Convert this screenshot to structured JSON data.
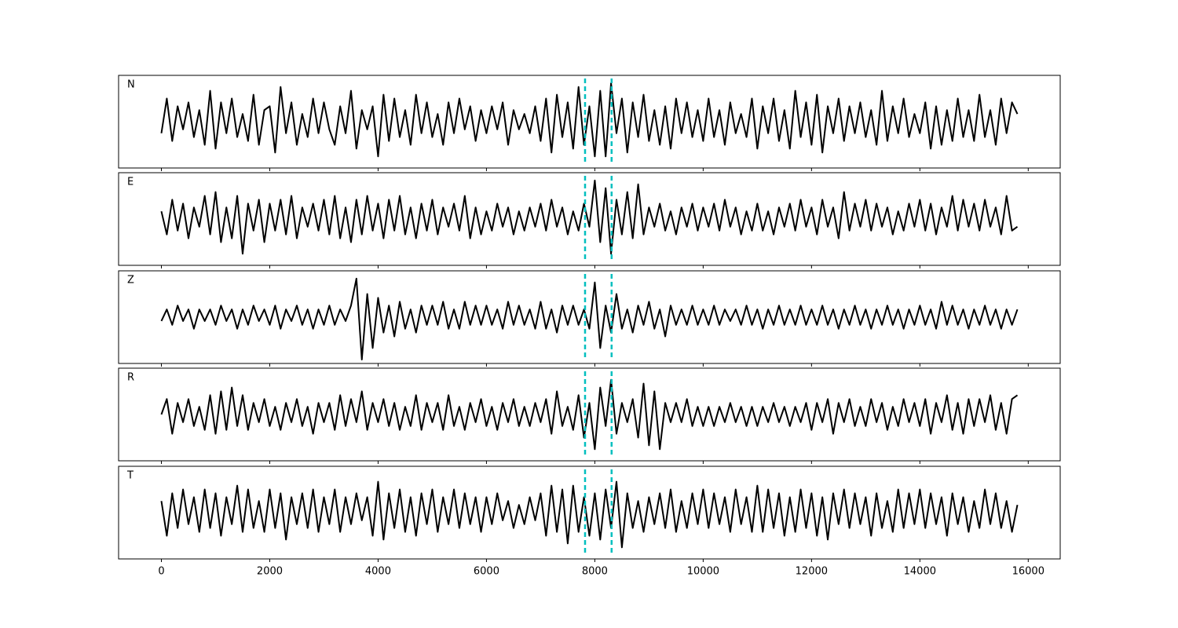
{
  "chart_data": {
    "type": "line",
    "x": [
      0,
      100,
      200,
      300,
      400,
      500,
      600,
      700,
      800,
      900,
      1000,
      1100,
      1200,
      1300,
      1400,
      1500,
      1600,
      1700,
      1800,
      1900,
      2000,
      2100,
      2200,
      2300,
      2400,
      2500,
      2600,
      2700,
      2800,
      2900,
      3000,
      3100,
      3200,
      3300,
      3400,
      3500,
      3600,
      3700,
      3800,
      3900,
      4000,
      4100,
      4200,
      4300,
      4400,
      4500,
      4600,
      4700,
      4800,
      4900,
      5000,
      5100,
      5200,
      5300,
      5400,
      5500,
      5600,
      5700,
      5800,
      5900,
      6000,
      6100,
      6200,
      6300,
      6400,
      6500,
      6600,
      6700,
      6800,
      6900,
      7000,
      7100,
      7200,
      7300,
      7400,
      7500,
      7600,
      7700,
      7800,
      7900,
      8000,
      8100,
      8200,
      8300,
      8400,
      8500,
      8600,
      8700,
      8800,
      8900,
      9000,
      9100,
      9200,
      9300,
      9400,
      9500,
      9600,
      9700,
      9800,
      9900,
      10000,
      10100,
      10200,
      10300,
      10400,
      10500,
      10600,
      10700,
      10800,
      10900,
      11000,
      11100,
      11200,
      11300,
      11400,
      11500,
      11600,
      11700,
      11800,
      11900,
      12000,
      12100,
      12200,
      12300,
      12400,
      12500,
      12600,
      12700,
      12800,
      12900,
      13000,
      13100,
      13200,
      13300,
      13400,
      13500,
      13600,
      13700,
      13800,
      13900,
      14000,
      14100,
      14200,
      14300,
      14400,
      14500,
      14600,
      14700,
      14800,
      14900,
      15000,
      15100,
      15200,
      15300,
      15400,
      15500,
      15600,
      15700,
      15800
    ],
    "xlim": [
      -790,
      16590
    ],
    "xticks": [
      0,
      2000,
      4000,
      6000,
      8000,
      10000,
      12000,
      14000,
      16000
    ],
    "ylim": [
      -12,
      12
    ],
    "vlines": [
      7820,
      8310
    ],
    "vline_color": "#00bfbf",
    "series": [
      {
        "name": "N",
        "color": "#000000",
        "values": [
          -3,
          6,
          -5,
          4,
          -2,
          5,
          -4,
          3,
          -6,
          8,
          -7,
          5,
          -3,
          6,
          -4,
          2,
          -5,
          7,
          -6,
          3,
          4,
          -8,
          9,
          -3,
          5,
          -6,
          2,
          -4,
          6,
          -3,
          5,
          -2,
          -6,
          4,
          -3,
          8,
          -7,
          3,
          -2,
          4,
          -9,
          7,
          -5,
          6,
          -4,
          3,
          -6,
          7,
          -3,
          5,
          -4,
          2,
          -6,
          5,
          -3,
          6,
          -2,
          4,
          -5,
          3,
          -3,
          4,
          -2,
          5,
          -6,
          3,
          -2,
          2,
          -3,
          4,
          -5,
          6,
          -8,
          7,
          -4,
          5,
          -7,
          9,
          -6,
          4,
          -9,
          8,
          -9,
          10,
          -3,
          6,
          -8,
          5,
          -4,
          7,
          -5,
          3,
          -6,
          4,
          -7,
          6,
          -3,
          5,
          -4,
          3,
          -5,
          6,
          -4,
          3,
          -6,
          5,
          -3,
          2,
          -4,
          6,
          -7,
          4,
          -3,
          6,
          -5,
          3,
          -7,
          8,
          -4,
          5,
          -6,
          7,
          -8,
          4,
          -3,
          6,
          -5,
          4,
          -3,
          5,
          -4,
          3,
          -6,
          8,
          -5,
          4,
          -3,
          6,
          -4,
          2,
          -3,
          5,
          -7,
          4,
          -6,
          3,
          -5,
          6,
          -4,
          3,
          -5,
          7,
          -4,
          3,
          -6,
          6,
          -3,
          5,
          2
        ]
      },
      {
        "name": "E",
        "color": "#000000",
        "values": [
          2,
          -4,
          5,
          -3,
          4,
          -5,
          3,
          -2,
          6,
          -4,
          7,
          -6,
          3,
          -5,
          6,
          -9,
          4,
          -3,
          5,
          -6,
          4,
          -3,
          5,
          -4,
          6,
          -5,
          3,
          -2,
          4,
          -3,
          5,
          -4,
          6,
          -5,
          3,
          -6,
          5,
          -4,
          6,
          -3,
          4,
          -5,
          5,
          -3,
          6,
          -4,
          3,
          -5,
          4,
          -3,
          5,
          -4,
          3,
          -2,
          4,
          -3,
          6,
          -5,
          3,
          -4,
          2,
          -3,
          4,
          -2,
          3,
          -4,
          2,
          -3,
          3,
          -2,
          4,
          -3,
          5,
          -2,
          3,
          -4,
          2,
          -3,
          4,
          -2,
          10,
          -6,
          8,
          -9,
          5,
          -4,
          7,
          -5,
          9,
          -4,
          3,
          -2,
          4,
          -3,
          2,
          -4,
          3,
          -2,
          4,
          -3,
          3,
          -2,
          4,
          -3,
          5,
          -2,
          3,
          -4,
          2,
          -3,
          4,
          -3,
          2,
          -4,
          3,
          -2,
          4,
          -3,
          5,
          -2,
          3,
          -4,
          5,
          -2,
          3,
          -5,
          7,
          -3,
          4,
          -2,
          5,
          -3,
          4,
          -2,
          3,
          -4,
          2,
          -3,
          4,
          -2,
          5,
          -3,
          4,
          -4,
          3,
          -2,
          6,
          -3,
          5,
          -2,
          4,
          -3,
          5,
          -2,
          3,
          -4,
          6,
          -3,
          -2
        ]
      },
      {
        "name": "Z",
        "color": "#000000",
        "values": [
          -1,
          2,
          -2,
          3,
          -1,
          2,
          -3,
          2,
          -1,
          2,
          -2,
          3,
          -1,
          2,
          -3,
          2,
          -2,
          3,
          -1,
          2,
          -2,
          3,
          -3,
          2,
          -1,
          3,
          -2,
          2,
          -3,
          2,
          -2,
          3,
          -2,
          2,
          -1,
          3,
          10,
          -11,
          6,
          -8,
          5,
          -4,
          3,
          -5,
          4,
          -3,
          2,
          -4,
          3,
          -2,
          3,
          -2,
          4,
          -3,
          2,
          -3,
          4,
          -2,
          3,
          -2,
          3,
          -2,
          2,
          -3,
          4,
          -2,
          3,
          -2,
          2,
          -3,
          4,
          -3,
          2,
          -4,
          3,
          -2,
          3,
          -2,
          2,
          -3,
          9,
          -8,
          3,
          -4,
          6,
          -3,
          2,
          -4,
          3,
          -2,
          4,
          -3,
          2,
          -5,
          3,
          -2,
          2,
          -2,
          3,
          -2,
          2,
          -2,
          3,
          -2,
          2,
          -1,
          2,
          -2,
          3,
          -2,
          2,
          -3,
          2,
          -2,
          3,
          -2,
          2,
          -2,
          3,
          -2,
          2,
          -2,
          3,
          -2,
          2,
          -3,
          2,
          -2,
          3,
          -2,
          2,
          -3,
          2,
          -2,
          3,
          -2,
          2,
          -3,
          2,
          -2,
          3,
          -2,
          2,
          -3,
          4,
          -2,
          3,
          -2,
          2,
          -3,
          2,
          -2,
          3,
          -2,
          2,
          -3,
          2,
          -2,
          2
        ]
      },
      {
        "name": "R",
        "color": "#000000",
        "values": [
          0,
          4,
          -5,
          3,
          -2,
          4,
          -3,
          2,
          -4,
          5,
          -5,
          6,
          -4,
          7,
          -3,
          5,
          -4,
          3,
          -2,
          4,
          -3,
          2,
          -4,
          3,
          -2,
          4,
          -3,
          2,
          -5,
          3,
          -2,
          3,
          -4,
          5,
          -3,
          4,
          -2,
          6,
          -4,
          3,
          -2,
          4,
          -3,
          3,
          -4,
          2,
          -3,
          5,
          -4,
          3,
          -2,
          3,
          -4,
          5,
          -3,
          2,
          -4,
          3,
          -2,
          4,
          -3,
          2,
          -4,
          3,
          -2,
          4,
          -3,
          2,
          -3,
          3,
          -2,
          4,
          -5,
          6,
          -3,
          2,
          -4,
          5,
          -6,
          3,
          -9,
          7,
          -3,
          9,
          -5,
          3,
          -2,
          4,
          -6,
          8,
          -8,
          6,
          -9,
          3,
          -2,
          3,
          -2,
          4,
          -3,
          2,
          -3,
          2,
          -3,
          2,
          -2,
          3,
          -2,
          2,
          -3,
          2,
          -3,
          2,
          -2,
          3,
          -2,
          2,
          -3,
          2,
          -2,
          3,
          -4,
          3,
          -2,
          4,
          -5,
          3,
          -2,
          4,
          -3,
          2,
          -3,
          4,
          -2,
          3,
          -4,
          2,
          -3,
          4,
          -2,
          3,
          -3,
          4,
          -5,
          3,
          -2,
          5,
          -4,
          3,
          -5,
          4,
          -3,
          4,
          -2,
          5,
          -4,
          3,
          -5,
          4,
          5
        ]
      },
      {
        "name": "T",
        "color": "#000000",
        "values": [
          3,
          -6,
          5,
          -4,
          6,
          -3,
          4,
          -5,
          6,
          -4,
          5,
          -6,
          4,
          -3,
          7,
          -5,
          6,
          -4,
          3,
          -5,
          6,
          -4,
          5,
          -7,
          4,
          -3,
          5,
          -4,
          6,
          -5,
          4,
          -3,
          6,
          -5,
          4,
          -3,
          5,
          -2,
          4,
          -6,
          8,
          -7,
          5,
          -4,
          6,
          -5,
          4,
          -6,
          5,
          -3,
          6,
          -5,
          4,
          -3,
          6,
          -4,
          5,
          -3,
          4,
          -5,
          4,
          -3,
          5,
          -2,
          3,
          -4,
          2,
          -3,
          4,
          -2,
          5,
          -6,
          7,
          -5,
          6,
          -8,
          7,
          -5,
          4,
          -6,
          5,
          -7,
          6,
          -4,
          8,
          -9,
          5,
          -4,
          3,
          -5,
          4,
          -3,
          5,
          -4,
          6,
          -5,
          3,
          -4,
          5,
          -3,
          6,
          -4,
          5,
          -3,
          4,
          -5,
          6,
          -3,
          4,
          -5,
          7,
          -5,
          6,
          -4,
          5,
          -6,
          4,
          -5,
          6,
          -4,
          5,
          -6,
          4,
          -7,
          5,
          -3,
          6,
          -4,
          5,
          -3,
          4,
          -6,
          5,
          -4,
          3,
          -5,
          6,
          -4,
          5,
          -3,
          6,
          -4,
          5,
          -3,
          4,
          -6,
          5,
          -3,
          4,
          -5,
          3,
          -4,
          6,
          -3,
          5,
          -4,
          3,
          -5,
          2
        ]
      }
    ]
  }
}
